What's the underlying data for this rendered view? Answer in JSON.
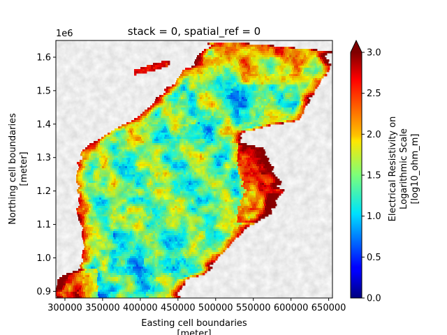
{
  "chart_data": {
    "type": "heatmap",
    "title": "stack = 0, spatial_ref = 0",
    "xlabel": [
      "Easting cell boundaries",
      "[meter]"
    ],
    "ylabel": [
      "Northing cell boundaries",
      "[meter]"
    ],
    "xlim": [
      288000,
      655000
    ],
    "ylim": [
      880000,
      1650000
    ],
    "x_ticks": [
      300000,
      350000,
      400000,
      450000,
      500000,
      550000,
      600000,
      650000
    ],
    "x_tick_labels": [
      "300000",
      "350000",
      "400000",
      "450000",
      "500000",
      "550000",
      "600000",
      "650000"
    ],
    "y_ticks": [
      900000,
      1000000,
      1100000,
      1200000,
      1300000,
      1400000,
      1500000,
      1600000
    ],
    "y_tick_labels": [
      "0.9",
      "1.0",
      "1.1",
      "1.2",
      "1.3",
      "1.4",
      "1.5",
      "1.6"
    ],
    "y_offset_label": "1e6",
    "colorbar": {
      "label": [
        "Electrical Resistivity on",
        "Logarithmic Scale",
        "[log10_ohm_m]"
      ],
      "range": [
        0.0,
        3.0
      ],
      "ticks": [
        0.0,
        0.5,
        1.0,
        1.5,
        2.0,
        2.5,
        3.0
      ],
      "tick_labels": [
        "0.0",
        "0.5",
        "1.0",
        "1.5",
        "2.0",
        "2.5",
        "3.0"
      ],
      "extend": "max",
      "colormap": "jet"
    },
    "grid": false
  }
}
